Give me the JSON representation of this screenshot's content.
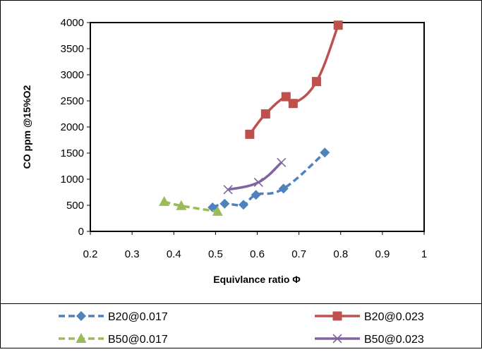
{
  "chart_data": {
    "type": "line",
    "title": "",
    "xlabel": "Equivlance ratio Φ",
    "ylabel": "CO ppm @15%O2",
    "xlim": [
      0.2,
      1
    ],
    "ylim": [
      0,
      4000
    ],
    "xticks": [
      "0.2",
      "0.3",
      "0.4",
      "0.5",
      "0.6",
      "0.7",
      "0.8",
      "0.9",
      "1"
    ],
    "yticks": [
      "0",
      "500",
      "1000",
      "1500",
      "2000",
      "2500",
      "3000",
      "3500",
      "4000"
    ],
    "grid": false,
    "legend_position": "bottom",
    "series": [
      {
        "name": "B20@0.017",
        "color": "#4F81BD",
        "line_style": "dashed",
        "marker": "diamond",
        "points": [
          [
            0.493,
            460
          ],
          [
            0.522,
            530
          ],
          [
            0.567,
            510
          ],
          [
            0.597,
            700
          ],
          [
            0.663,
            820
          ],
          [
            0.762,
            1510
          ]
        ]
      },
      {
        "name": "B20@0.023",
        "color": "#C0504D",
        "line_style": "solid",
        "marker": "square",
        "points": [
          [
            0.582,
            1860
          ],
          [
            0.62,
            2250
          ],
          [
            0.669,
            2580
          ],
          [
            0.686,
            2450
          ],
          [
            0.742,
            2870
          ],
          [
            0.794,
            3950
          ]
        ]
      },
      {
        "name": "B50@0.017",
        "color": "#9BBB59",
        "line_style": "dashed",
        "marker": "triangle",
        "points": [
          [
            0.377,
            570
          ],
          [
            0.418,
            490
          ],
          [
            0.505,
            380
          ]
        ]
      },
      {
        "name": "B50@0.023",
        "color": "#8064A2",
        "line_style": "solid",
        "marker": "x",
        "points": [
          [
            0.53,
            800
          ],
          [
            0.603,
            940
          ],
          [
            0.658,
            1320
          ]
        ]
      }
    ]
  }
}
